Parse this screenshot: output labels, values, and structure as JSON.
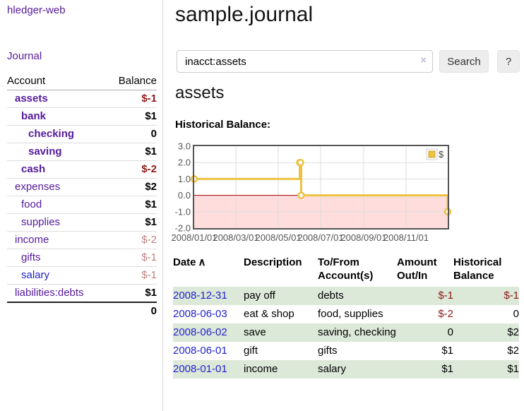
{
  "sidebar": {
    "brand": "hledger-web",
    "journal_link": "Journal",
    "accounts": {
      "col_account": "Account",
      "col_balance": "Balance",
      "rows": [
        {
          "name": "assets",
          "indent": 1,
          "link_style": "visited-bold",
          "balance": "$-1",
          "balance_style": "neg"
        },
        {
          "name": "bank",
          "indent": 2,
          "link_style": "visited-bold",
          "balance": "$1",
          "balance_style": "pos"
        },
        {
          "name": "checking",
          "indent": 3,
          "link_style": "visited-bold",
          "balance": "0",
          "balance_style": "pos"
        },
        {
          "name": "saving",
          "indent": 3,
          "link_style": "visited-bold",
          "balance": "$1",
          "balance_style": "pos"
        },
        {
          "name": "cash",
          "indent": 2,
          "link_style": "visited-bold",
          "balance": "$-2",
          "balance_style": "neg"
        },
        {
          "name": "expenses",
          "indent": 1,
          "link_style": "visited",
          "balance": "$2",
          "balance_style": "pos"
        },
        {
          "name": "food",
          "indent": 2,
          "link_style": "visited",
          "balance": "$1",
          "balance_style": "pos"
        },
        {
          "name": "supplies",
          "indent": 2,
          "link_style": "visited",
          "balance": "$1",
          "balance_style": "pos"
        },
        {
          "name": "income",
          "indent": 1,
          "link_style": "visited",
          "balance": "$-2",
          "balance_style": "neg-light"
        },
        {
          "name": "gifts",
          "indent": 2,
          "link_style": "visited",
          "balance": "$-1",
          "balance_style": "neg-light"
        },
        {
          "name": "salary",
          "indent": 2,
          "link_style": "unvisited",
          "balance": "$-1",
          "balance_style": "neg-light"
        },
        {
          "name": "liabilities:debts",
          "indent": 1,
          "link_style": "visited",
          "balance": "$1",
          "balance_style": "pos"
        }
      ],
      "total": "0"
    }
  },
  "main": {
    "title": "sample.journal",
    "search": {
      "query": "inacct:assets",
      "clear_icon": "×",
      "search_label": "Search",
      "help_label": "?"
    },
    "account_heading": "assets",
    "chart_heading": "Historical Balance:"
  },
  "chart_data": {
    "type": "line",
    "steps": true,
    "title": "Historical Balance",
    "series": [
      {
        "name": "$",
        "color": "#edc240",
        "points": [
          {
            "date": "2008-01-01",
            "value": 1
          },
          {
            "date": "2008-06-01",
            "value": 2
          },
          {
            "date": "2008-06-02",
            "value": 2
          },
          {
            "date": "2008-06-03",
            "value": 0
          },
          {
            "date": "2008-12-31",
            "value": -1
          }
        ]
      }
    ],
    "x_range": [
      "2008/01/01",
      "2008/12/31"
    ],
    "ylim": [
      -2,
      3
    ],
    "y_ticks": [
      3,
      2,
      1,
      0,
      -1,
      -2
    ],
    "x_ticks": [
      "2008/01/01",
      "2008/03/01",
      "2008/05/01",
      "2008/07/01",
      "2008/09/01",
      "2008/11/01"
    ],
    "legend_position": "top-right",
    "colors": {
      "negative_region": "#ffdddd",
      "zero_line": "#a00000",
      "grid": "#dddddd",
      "border": "#545454",
      "tick_label": "#545454",
      "legend_text": "#444444"
    }
  },
  "register": {
    "columns": [
      "Date",
      "Description",
      "To/From Account(s)",
      "Amount Out/In",
      "Historical Balance"
    ],
    "sort_icon": "∧",
    "rows": [
      {
        "date": "2008-12-31",
        "description": "pay off",
        "accounts": "debts",
        "amount": "$-1",
        "balance": "$-1"
      },
      {
        "date": "2008-06-03",
        "description": "eat & shop",
        "accounts": "food, supplies",
        "amount": "$-2",
        "balance": "0"
      },
      {
        "date": "2008-06-02",
        "description": "save",
        "accounts": "saving, checking",
        "amount": "0",
        "balance": "$2"
      },
      {
        "date": "2008-06-01",
        "description": "gift",
        "accounts": "gifts",
        "amount": "$1",
        "balance": "$2"
      },
      {
        "date": "2008-01-01",
        "description": "income",
        "accounts": "salary",
        "amount": "$1",
        "balance": "$1"
      }
    ]
  }
}
